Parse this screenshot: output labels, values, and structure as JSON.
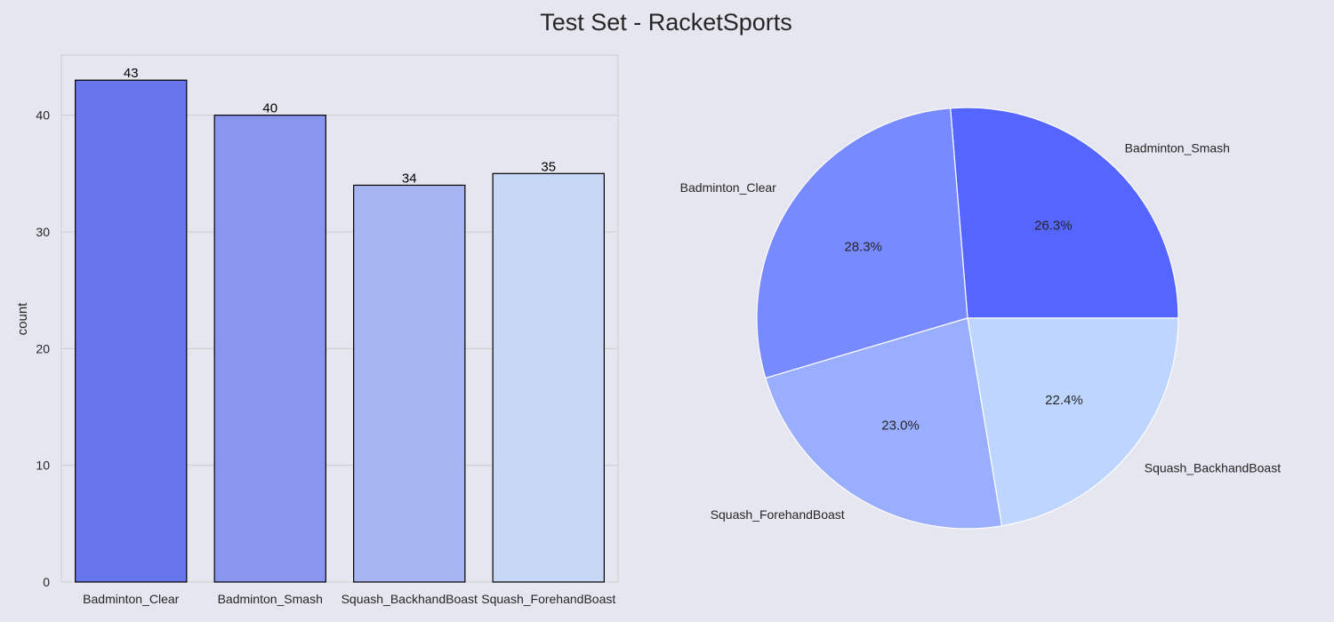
{
  "figure_title": "Test Set - RacketSports",
  "chart_data": [
    {
      "type": "bar",
      "title": "",
      "xlabel": "",
      "ylabel": "count",
      "categories": [
        "Badminton_Clear",
        "Badminton_Smash",
        "Squash_BackhandBoast",
        "Squash_ForehandBoast"
      ],
      "values": [
        43,
        40,
        34,
        35
      ],
      "data_labels": [
        "43",
        "40",
        "34",
        "35"
      ],
      "yticks": [
        0,
        10,
        20,
        30,
        40
      ],
      "ytick_labels": [
        "0",
        "10",
        "20",
        "30",
        "40"
      ],
      "ylim": [
        0,
        45.15
      ],
      "grid": true,
      "colors": [
        "#6875ec",
        "#8995ef",
        "#a6b5f2",
        "#c6d8f6"
      ],
      "edge_color": "#000000"
    },
    {
      "type": "pie",
      "title": "",
      "labels": [
        "Badminton_Smash",
        "Badminton_Clear",
        "Squash_ForehandBoast",
        "Squash_BackhandBoast"
      ],
      "values": [
        26.3,
        28.3,
        23.0,
        22.4
      ],
      "pct_labels": [
        "26.3%",
        "28.3%",
        "23.0%",
        "22.4%"
      ],
      "start_angle_deg": 0,
      "direction": "counterclockwise",
      "colors": [
        "#5565ff",
        "#788aff",
        "#9aaeff",
        "#bed6ff"
      ],
      "edge_color": "#ffffff"
    }
  ]
}
